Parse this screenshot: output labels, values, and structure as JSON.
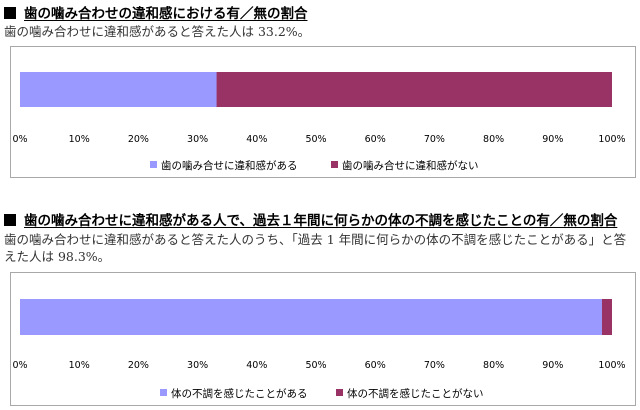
{
  "section1": {
    "title": "歯の噛み合わせの違和感における有／無の割合",
    "description": "歯の噛み合わせに違和感があると答えた人は 33.2%。"
  },
  "section2": {
    "title": "歯の噛み合わせに違和感がある人で、過去１年間に何らかの体の不調を感じたことの有／無の割合",
    "description": "歯の噛み合わせに違和感があると答えた人のうち、「過去 1 年間に何らかの体の不調を感じたことがある」と答えた人は 98.3%。"
  },
  "chart_data": [
    {
      "type": "bar",
      "orientation": "horizontal",
      "stacked": "percent",
      "categories": [
        ""
      ],
      "series": [
        {
          "name": "歯の噛み合せに違和感がある",
          "values": [
            33.2
          ],
          "color": "#9999ff"
        },
        {
          "name": "歯の噛み合せに違和感がない",
          "values": [
            66.8
          ],
          "color": "#993366"
        }
      ],
      "xlim": [
        0,
        100
      ],
      "xticks": [
        "0%",
        "10%",
        "20%",
        "30%",
        "40%",
        "50%",
        "60%",
        "70%",
        "80%",
        "90%",
        "100%"
      ],
      "grid": false,
      "legend": "bottom"
    },
    {
      "type": "bar",
      "orientation": "horizontal",
      "stacked": "percent",
      "categories": [
        ""
      ],
      "series": [
        {
          "name": "体の不調を感じたことがある",
          "values": [
            98.3
          ],
          "color": "#9999ff"
        },
        {
          "name": "体の不調を感じたことがない",
          "values": [
            1.7
          ],
          "color": "#993366"
        }
      ],
      "xlim": [
        0,
        100
      ],
      "xticks": [
        "0%",
        "10%",
        "20%",
        "30%",
        "40%",
        "50%",
        "60%",
        "70%",
        "80%",
        "90%",
        "100%"
      ],
      "grid": false,
      "legend": "bottom"
    }
  ]
}
